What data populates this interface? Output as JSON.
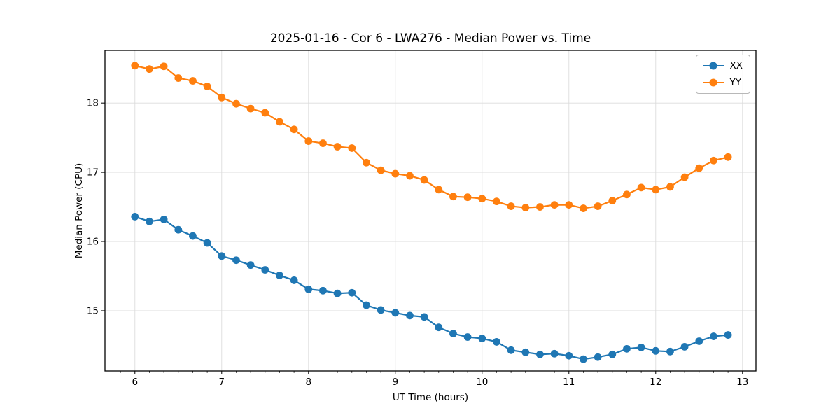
{
  "chart_data": {
    "type": "line",
    "title": "2025-01-16 - Cor 6 - LWA276 - Median Power vs. Time",
    "xlabel": "UT Time (hours)",
    "ylabel": "Median Power (CPU)",
    "xlim": [
      5.655,
      13.155
    ],
    "ylim": [
      14.13,
      18.76
    ],
    "xticks": [
      6,
      7,
      8,
      9,
      10,
      11,
      12,
      13
    ],
    "yticks": [
      15,
      16,
      17,
      18
    ],
    "x_minor_divisions": 6,
    "grid": true,
    "grid_color": "#dcdcdc",
    "spine_color": "#000000",
    "legend_position": "upper right",
    "marker": "circle",
    "x": [
      6.0,
      6.1667,
      6.3333,
      6.5,
      6.6667,
      6.8333,
      7.0,
      7.1667,
      7.3333,
      7.5,
      7.6667,
      7.8333,
      8.0,
      8.1667,
      8.3333,
      8.5,
      8.6667,
      8.8333,
      9.0,
      9.1667,
      9.3333,
      9.5,
      9.6667,
      9.8333,
      10.0,
      10.1667,
      10.3333,
      10.5,
      10.6667,
      10.8333,
      11.0,
      11.1667,
      11.3333,
      11.5,
      11.6667,
      11.8333,
      12.0,
      12.1667,
      12.3333,
      12.5,
      12.6667,
      12.8333
    ],
    "series": [
      {
        "name": "XX",
        "color": "#1f77b4",
        "values": [
          16.36,
          16.29,
          16.32,
          16.17,
          16.08,
          15.98,
          15.79,
          15.73,
          15.66,
          15.59,
          15.51,
          15.44,
          15.31,
          15.29,
          15.25,
          15.26,
          15.08,
          15.01,
          14.97,
          14.93,
          14.91,
          14.76,
          14.67,
          14.62,
          14.6,
          14.55,
          14.43,
          14.4,
          14.37,
          14.38,
          14.35,
          14.3,
          14.33,
          14.37,
          14.45,
          14.47,
          14.42,
          14.41,
          14.48,
          14.56,
          14.63,
          14.65
        ]
      },
      {
        "name": "YY",
        "color": "#ff7f0e",
        "values": [
          18.54,
          18.49,
          18.53,
          18.36,
          18.32,
          18.24,
          18.08,
          17.99,
          17.92,
          17.86,
          17.73,
          17.62,
          17.45,
          17.42,
          17.37,
          17.35,
          17.14,
          17.03,
          16.98,
          16.95,
          16.89,
          16.75,
          16.65,
          16.64,
          16.62,
          16.58,
          16.51,
          16.49,
          16.5,
          16.53,
          16.53,
          16.48,
          16.51,
          16.59,
          16.68,
          16.78,
          16.75,
          16.79,
          16.93,
          17.06,
          17.17,
          17.22
        ]
      }
    ]
  }
}
